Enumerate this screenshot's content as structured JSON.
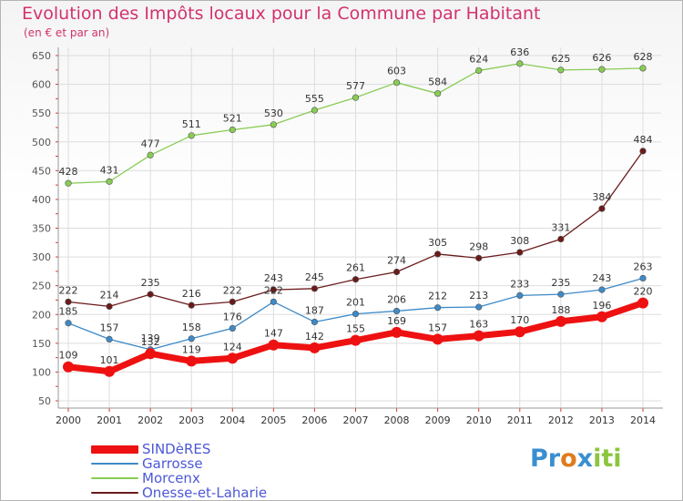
{
  "title": "Evolution des Impôts locaux pour la Commune par Habitant",
  "subtitle": "(en € et par an)",
  "logo": "Proxiti",
  "chart_data": {
    "type": "line",
    "x": [
      2000,
      2001,
      2002,
      2003,
      2004,
      2005,
      2006,
      2007,
      2008,
      2009,
      2010,
      2011,
      2012,
      2013,
      2014
    ],
    "ylim": [
      50,
      650
    ],
    "yticks": [
      50,
      100,
      150,
      200,
      250,
      300,
      350,
      400,
      450,
      500,
      550,
      600,
      650
    ],
    "grid": true,
    "legend_placement": "bottom-left",
    "series": [
      {
        "name": "SINDèRES",
        "color": "#ee1111",
        "thick": true,
        "values": [
          109,
          101,
          132,
          119,
          124,
          147,
          142,
          155,
          169,
          157,
          163,
          170,
          188,
          196,
          220
        ]
      },
      {
        "name": "Garrosse",
        "color": "#3d8ac8",
        "thick": false,
        "values": [
          185,
          157,
          139,
          158,
          176,
          222,
          187,
          201,
          206,
          212,
          213,
          233,
          235,
          243,
          263
        ]
      },
      {
        "name": "Morcenx",
        "color": "#88cc55",
        "thick": false,
        "values": [
          428,
          431,
          477,
          511,
          521,
          530,
          555,
          577,
          603,
          584,
          624,
          636,
          625,
          626,
          628
        ]
      },
      {
        "name": "Onesse-et-Laharie",
        "color": "#6b1a1a",
        "thick": false,
        "values": [
          222,
          214,
          235,
          216,
          222,
          243,
          245,
          261,
          274,
          305,
          298,
          308,
          331,
          384,
          484
        ]
      }
    ]
  }
}
